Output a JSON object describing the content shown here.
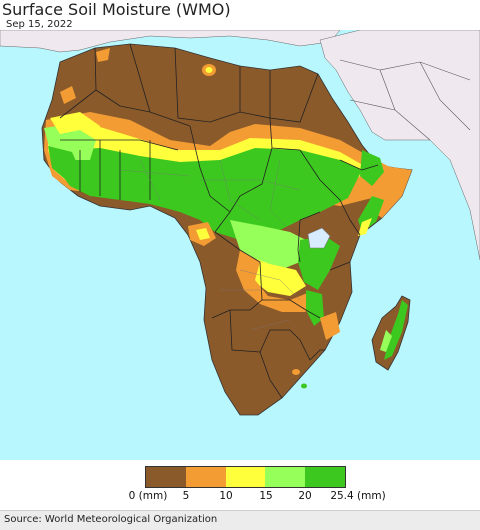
{
  "header": {
    "title": "Surface Soil Moisture (WMO)",
    "date": "Sep 15, 2022"
  },
  "legend": {
    "colors": [
      "#8b5a2b",
      "#f39c34",
      "#ffff3c",
      "#96ff5a",
      "#3cc81e"
    ],
    "ticks": [
      "0 (mm)",
      "5",
      "10",
      "15",
      "20",
      "25.4 (mm)"
    ]
  },
  "footer": {
    "source": "Source: World Meteorological Organization"
  },
  "map_colors": {
    "ocean": "#b9f7ff",
    "other_land": "#efe8ef",
    "dry": "#8b5a2b",
    "low": "#f39c34",
    "mid": "#ffff3c",
    "highmid": "#96ff5a",
    "high": "#3cc81e",
    "lake": "#d8ecff"
  }
}
